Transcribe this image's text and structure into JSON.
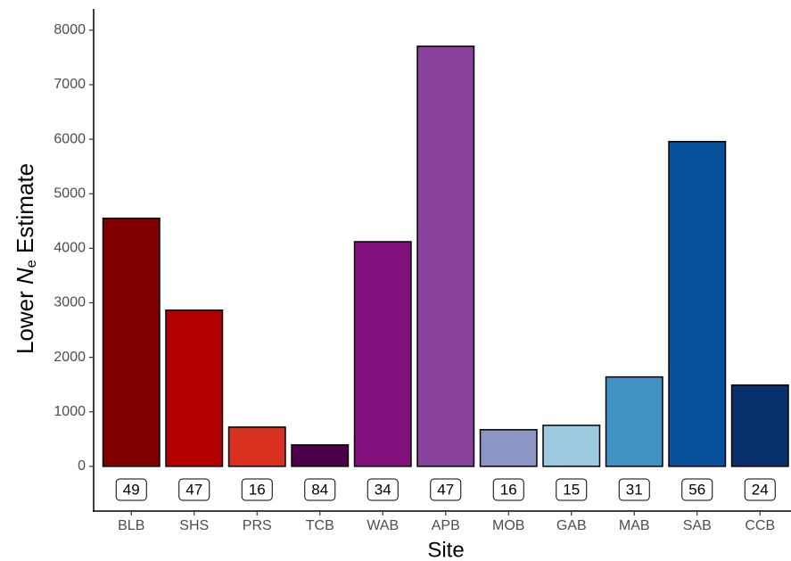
{
  "chart_data": {
    "type": "bar",
    "x_label": "Site",
    "y_label": {
      "prefix": "Lower ",
      "symbol": "N",
      "subscript": "e",
      "suffix": " Estimate"
    },
    "categories": [
      "BLB",
      "SHS",
      "PRS",
      "TCB",
      "WAB",
      "APB",
      "MOB",
      "GAB",
      "MAB",
      "SAB",
      "CCB"
    ],
    "values": [
      4550,
      2865,
      720,
      393,
      4120,
      7705,
      672,
      752,
      1640,
      5957,
      1490
    ],
    "colors": [
      "#800000",
      "#b30000",
      "#d7301f",
      "#4d004b",
      "#810f7c",
      "#88419d",
      "#8c96c6",
      "#9ecae1",
      "#4292c6",
      "#08519c",
      "#08306b"
    ],
    "sample_sizes": [
      49,
      47,
      16,
      84,
      34,
      47,
      16,
      15,
      31,
      56,
      24
    ],
    "ylim": [
      -820,
      8390
    ],
    "yticks": [
      0,
      1000,
      2000,
      3000,
      4000,
      5000,
      6000,
      7000,
      8000
    ],
    "grid": false
  }
}
